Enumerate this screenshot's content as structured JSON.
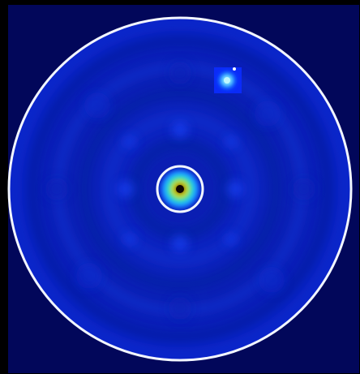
{
  "colors": {
    "outer_background": "#000000",
    "frame_background": "#02075a",
    "field_base": "#0b1fb8",
    "ring_stroke": "#f2f6ff",
    "hot_core": "#1a0f00",
    "hot_yellow": "#ffe800",
    "hot_green": "#36e07a",
    "hot_cyan": "#22c9ff",
    "secondary_core": "#bff8ff"
  },
  "scene": {
    "description_label": "",
    "marks": {
      "central_spot": "thermal-peak",
      "secondary_spot": "small-bright-spot"
    }
  }
}
